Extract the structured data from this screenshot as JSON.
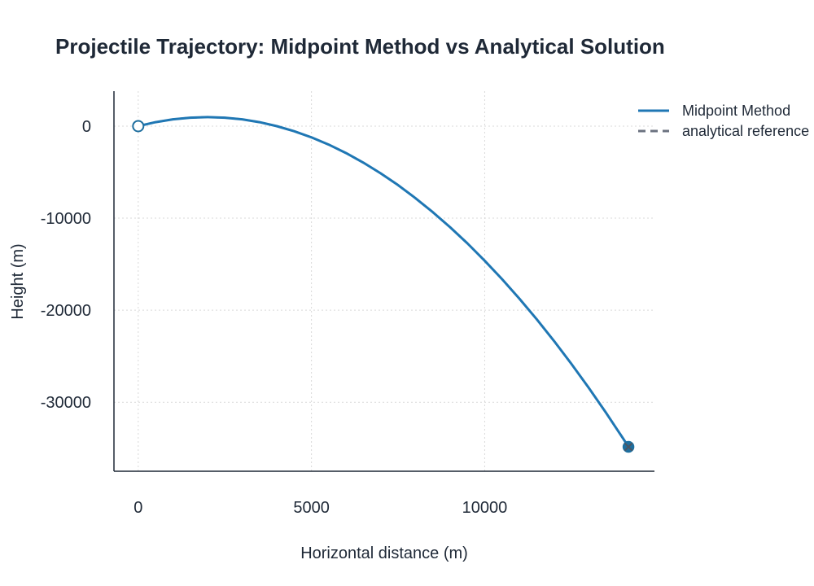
{
  "chart_data": {
    "type": "line",
    "title": "Projectile Trajectory: Midpoint Method vs Analytical Solution",
    "xlabel": "Horizontal distance (m)",
    "ylabel": "Height (m)",
    "xlim": [
      -700,
      14900
    ],
    "ylim": [
      -37500,
      3800
    ],
    "x_ticks": [
      0,
      5000,
      10000
    ],
    "y_ticks": [
      0,
      -10000,
      -20000,
      -30000
    ],
    "grid": true,
    "legend_position": "top-right",
    "series": [
      {
        "name": "Midpoint Method",
        "color": "#1f77b4",
        "style": "solid",
        "x": [
          0,
          500,
          1000,
          1500,
          2000,
          2500,
          3000,
          3500,
          4000,
          4500,
          5000,
          5500,
          6000,
          6500,
          7000,
          7500,
          8000,
          8500,
          9000,
          9500,
          10000,
          10500,
          11000,
          11500,
          12000,
          12500,
          13000,
          13500,
          14000,
          14150
        ],
        "y": [
          0,
          430,
          740,
          920,
          980,
          920,
          740,
          430,
          0,
          -550,
          -1220,
          -2010,
          -2930,
          -3970,
          -5130,
          -6410,
          -7820,
          -9340,
          -10980,
          -12740,
          -14620,
          -16620,
          -18740,
          -20980,
          -23340,
          -25820,
          -28420,
          -31130,
          -33970,
          -34850
        ]
      },
      {
        "name": "analytical reference",
        "color": "#6b7280",
        "style": "dashed",
        "x": [
          0,
          500,
          1000,
          1500,
          2000,
          2500,
          3000,
          3500,
          4000,
          4500,
          5000,
          5500,
          6000,
          6500,
          7000,
          7500,
          8000,
          8500,
          9000,
          9500,
          10000,
          10500,
          11000,
          11500,
          12000,
          12500,
          13000,
          13500,
          14000,
          14150
        ],
        "y": [
          0,
          430,
          740,
          920,
          980,
          920,
          740,
          430,
          0,
          -550,
          -1220,
          -2010,
          -2930,
          -3970,
          -5130,
          -6410,
          -7820,
          -9340,
          -10980,
          -12740,
          -14620,
          -16620,
          -18740,
          -20980,
          -23340,
          -25820,
          -28420,
          -31130,
          -33970,
          -34850
        ]
      }
    ],
    "markers": {
      "start": {
        "x": 0,
        "y": 0,
        "shape": "open-circle",
        "color": "#1f6f9f"
      },
      "end": {
        "x": 14150,
        "y": -34850,
        "shape": "filled-circle-x",
        "color": "#1f6f9f"
      }
    }
  }
}
